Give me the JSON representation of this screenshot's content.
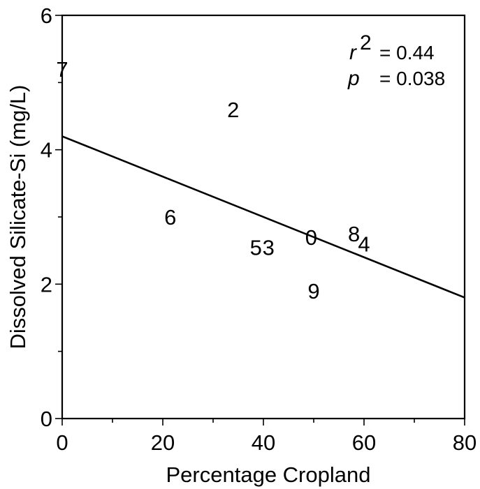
{
  "chart_data": {
    "type": "scatter",
    "title": "",
    "xlabel": "Percentage Cropland",
    "ylabel": "Dissolved Silicate-Si (mg/L)",
    "xlim": [
      0,
      80
    ],
    "ylim": [
      0,
      6
    ],
    "x_ticks": [
      "0",
      "20",
      "40",
      "60",
      "80"
    ],
    "y_ticks": [
      "0",
      "2",
      "4",
      "6"
    ],
    "grid": false,
    "points": [
      {
        "label": "7",
        "x": 0,
        "y": 5.2
      },
      {
        "label": "2",
        "x": 34,
        "y": 4.6
      },
      {
        "label": "6",
        "x": 21.5,
        "y": 3.0
      },
      {
        "label": "5",
        "x": 38.5,
        "y": 2.55
      },
      {
        "label": "3",
        "x": 41,
        "y": 2.55
      },
      {
        "label": "0",
        "x": 49.5,
        "y": 2.7
      },
      {
        "label": "8",
        "x": 58,
        "y": 2.75
      },
      {
        "label": "4",
        "x": 60,
        "y": 2.6
      },
      {
        "label": "9",
        "x": 50,
        "y": 1.9
      }
    ],
    "fit_line": {
      "x": [
        0,
        80
      ],
      "y": [
        4.2,
        1.8
      ]
    },
    "annotations": {
      "r_symbol": "r",
      "r_exponent": "2",
      "r_value": "= 0.44",
      "p_symbol": "p",
      "p_value": "= 0.038"
    }
  }
}
